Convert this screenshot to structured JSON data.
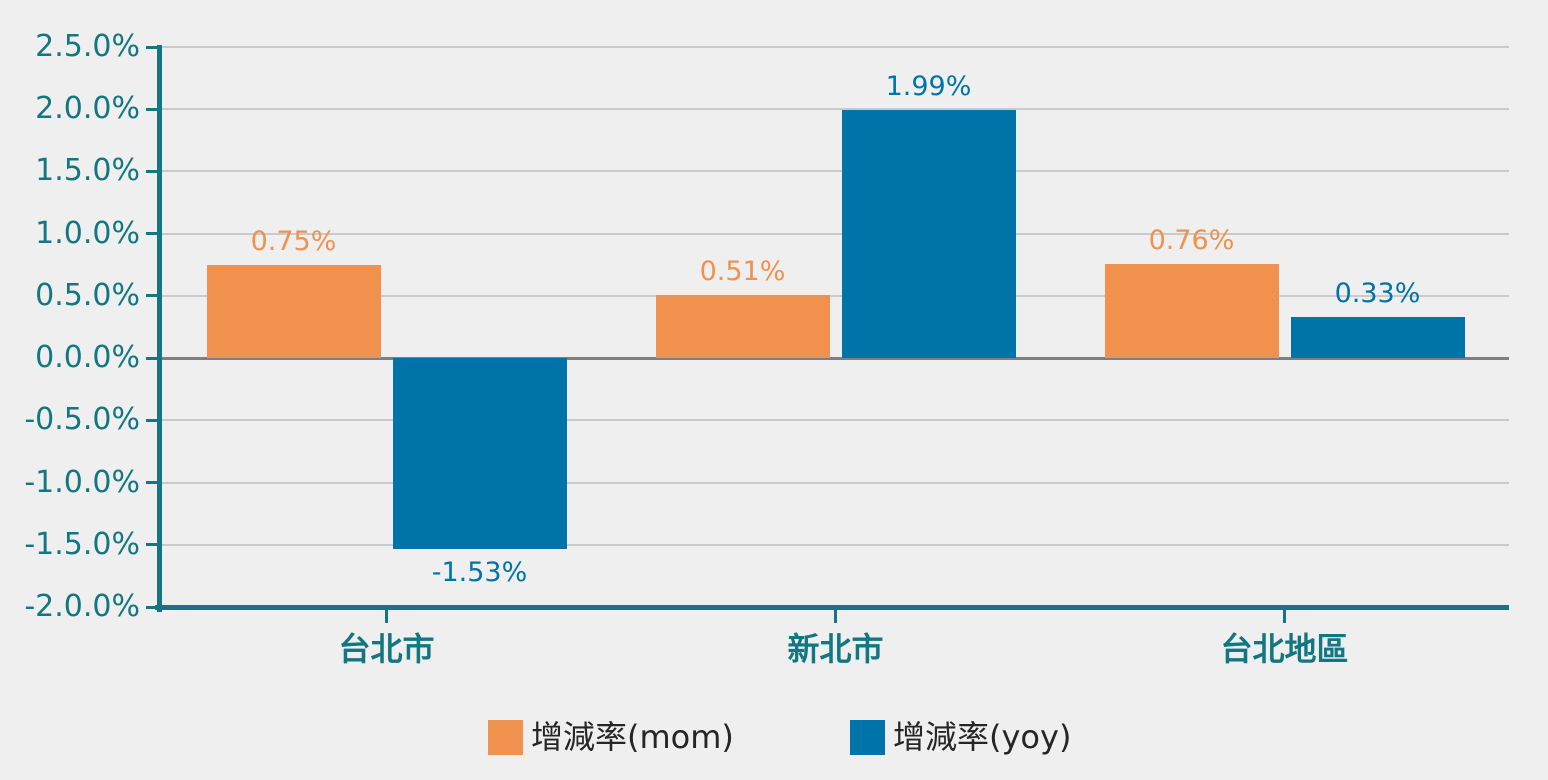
{
  "chart_data": {
    "type": "bar",
    "title": "",
    "categories": [
      "台北市",
      "新北市",
      "台北地區"
    ],
    "series": [
      {
        "name": "增減率(mom)",
        "color": "#f0914d",
        "values": [
          0.75,
          0.51,
          0.76
        ],
        "labels": [
          "0.75%",
          "0.51%",
          "0.76%"
        ]
      },
      {
        "name": "增減率(yoy)",
        "color": "#0073a9",
        "values": [
          -1.53,
          1.99,
          0.33
        ],
        "labels": [
          "-1.53%",
          "1.99%",
          "0.33%"
        ]
      }
    ],
    "ylim": [
      -2.0,
      2.5
    ],
    "yticks": [
      {
        "label": "2.5.0%",
        "value": 2.5
      },
      {
        "label": "2.0.0%",
        "value": 2.0
      },
      {
        "label": "1.5.0%",
        "value": 1.5
      },
      {
        "label": "1.0.0%",
        "value": 1.0
      },
      {
        "label": "0.5.0%",
        "value": 0.5
      },
      {
        "label": "0.0.0%",
        "value": 0.0
      },
      {
        "label": "-0.5.0%",
        "value": -0.5
      },
      {
        "label": "-1.0.0%",
        "value": -1.0
      },
      {
        "label": "-1.5.0%",
        "value": -1.5
      },
      {
        "label": "-2.0.0%",
        "value": -2.0
      }
    ],
    "grid": true,
    "legend_position": "bottom",
    "colors": {
      "background": "#efeff0",
      "axis": "#127780",
      "gridline": "#c9cacb",
      "zeroline": "#7f7f7f",
      "legend_text": "#262626"
    }
  }
}
